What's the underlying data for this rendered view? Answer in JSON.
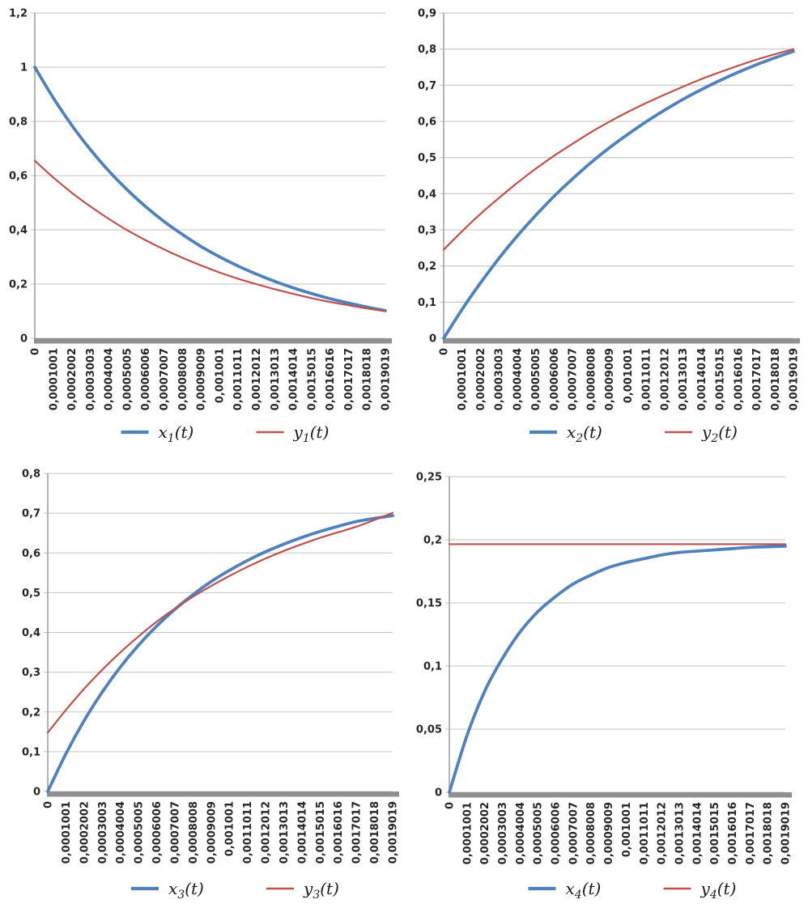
{
  "page": {
    "background": "#ffffff",
    "description": "Four line charts in a 2x2 grid showing numerical ODE solution curves x_i(t) and y_i(t) versus time t"
  },
  "colors": {
    "series_blue": "#4F81BD",
    "series_red": "#C0504D",
    "gridline": "#C3C3C3",
    "axis_line": "#8C8C8C",
    "baseline_bar": "#909090",
    "tick_text": "#262626",
    "legend_text": "#1a1a1a"
  },
  "chart_data": {
    "type": "line",
    "decimal_separator": ",",
    "grid": "horizontal",
    "legend_position": "bottom-center",
    "categories": [
      "0",
      "0,0001001",
      "0,0002002",
      "0,0003003",
      "0,0004004",
      "0,0005005",
      "0,0006006",
      "0,0007007",
      "0,0008008",
      "0,0009009",
      "0,001001",
      "0,0011011",
      "0,0012012",
      "0,0013013",
      "0,0014014",
      "0,0015015",
      "0,0016016",
      "0,0017017",
      "0,0018018",
      "0,0019019"
    ],
    "charts": [
      {
        "id": "chart-1",
        "position": "top-left",
        "ylim": [
          0,
          1.2
        ],
        "ytick_step": 0.2,
        "y_tick_labels": [
          "0",
          "0,2",
          "0,4",
          "0,6",
          "0,8",
          "1",
          "1,2"
        ],
        "series": [
          {
            "id": "x1",
            "name": "x₁(t)",
            "label_var": "x",
            "label_sub": "1",
            "label_arg": "(t)",
            "color": "#4F81BD",
            "width": "thick",
            "values": [
              1.0,
              0.887,
              0.786,
              0.697,
              0.618,
              0.548,
              0.486,
              0.431,
              0.383,
              0.339,
              0.301,
              0.267,
              0.237,
              0.21,
              0.186,
              0.165,
              0.146,
              0.13,
              0.115,
              0.102
            ]
          },
          {
            "id": "y1",
            "name": "y₁(t)",
            "label_var": "y",
            "label_sub": "1",
            "label_arg": "(t)",
            "color": "#C0504D",
            "width": "thin",
            "values": [
              0.655,
              0.593,
              0.537,
              0.487,
              0.441,
              0.399,
              0.362,
              0.328,
              0.297,
              0.269,
              0.243,
              0.22,
              0.2,
              0.181,
              0.164,
              0.148,
              0.134,
              0.122,
              0.11,
              0.1
            ]
          }
        ]
      },
      {
        "id": "chart-2",
        "position": "top-right",
        "ylim": [
          0,
          0.9
        ],
        "ytick_step": 0.1,
        "y_tick_labels": [
          "0",
          "0,1",
          "0,2",
          "0,3",
          "0,4",
          "0,5",
          "0,6",
          "0,7",
          "0,8",
          "0,9"
        ],
        "series": [
          {
            "id": "x2",
            "name": "x₂(t)",
            "label_var": "x",
            "label_sub": "2",
            "label_arg": "(t)",
            "color": "#4F81BD",
            "width": "thick",
            "values": [
              0.0,
              0.08,
              0.153,
              0.221,
              0.283,
              0.34,
              0.393,
              0.441,
              0.486,
              0.527,
              0.564,
              0.599,
              0.631,
              0.661,
              0.688,
              0.713,
              0.736,
              0.757,
              0.776,
              0.794
            ]
          },
          {
            "id": "y2",
            "name": "y₂(t)",
            "label_var": "y",
            "label_sub": "2",
            "label_arg": "(t)",
            "color": "#C0504D",
            "width": "thin",
            "values": [
              0.245,
              0.296,
              0.344,
              0.388,
              0.43,
              0.469,
              0.505,
              0.538,
              0.57,
              0.599,
              0.626,
              0.651,
              0.674,
              0.696,
              0.717,
              0.736,
              0.754,
              0.771,
              0.786,
              0.8
            ]
          }
        ]
      },
      {
        "id": "chart-3",
        "position": "bottom-left",
        "ylim": [
          0,
          0.8
        ],
        "ytick_step": 0.1,
        "y_tick_labels": [
          "0",
          "0,1",
          "0,2",
          "0,3",
          "0,4",
          "0,5",
          "0,6",
          "0,7",
          "0,8"
        ],
        "series": [
          {
            "id": "x3",
            "name": "x₃(t)",
            "label_var": "x",
            "label_sub": "3",
            "label_arg": "(t)",
            "color": "#4F81BD",
            "width": "thick",
            "values": [
              0.0,
              0.095,
              0.178,
              0.25,
              0.313,
              0.368,
              0.416,
              0.458,
              0.495,
              0.528,
              0.556,
              0.581,
              0.603,
              0.622,
              0.639,
              0.654,
              0.667,
              0.679,
              0.687,
              0.694
            ]
          },
          {
            "id": "y3",
            "name": "y₃(t)",
            "label_var": "y",
            "label_sub": "3",
            "label_arg": "(t)",
            "color": "#C0504D",
            "width": "thin",
            "values": [
              0.148,
              0.205,
              0.258,
              0.306,
              0.35,
              0.39,
              0.427,
              0.46,
              0.49,
              0.517,
              0.542,
              0.565,
              0.586,
              0.605,
              0.622,
              0.638,
              0.652,
              0.666,
              0.683,
              0.701
            ]
          }
        ]
      },
      {
        "id": "chart-4",
        "position": "bottom-right",
        "ylim": [
          0,
          0.25
        ],
        "ytick_step": 0.05,
        "y_tick_labels": [
          "0",
          "0,05",
          "0,1",
          "0,15",
          "0,2",
          "0,25"
        ],
        "series": [
          {
            "id": "x4",
            "name": "x₄(t)",
            "label_var": "x",
            "label_sub": "4",
            "label_arg": "(t)",
            "color": "#4F81BD",
            "width": "thick",
            "values": [
              0.0,
              0.045,
              0.08,
              0.106,
              0.127,
              0.143,
              0.155,
              0.165,
              0.172,
              0.178,
              0.182,
              0.185,
              0.188,
              0.19,
              0.191,
              0.192,
              0.193,
              0.194,
              0.1945,
              0.195
            ]
          },
          {
            "id": "y4",
            "name": "y₄(t)",
            "label_var": "y",
            "label_sub": "4",
            "label_arg": "(t)",
            "color": "#C0504D",
            "width": "thin",
            "values": [
              0.1965,
              0.1965,
              0.1965,
              0.1965,
              0.1965,
              0.1965,
              0.1965,
              0.1965,
              0.1965,
              0.1965,
              0.1965,
              0.1965,
              0.1965,
              0.1965,
              0.1965,
              0.1965,
              0.1965,
              0.1965,
              0.1965,
              0.1965
            ]
          }
        ]
      }
    ]
  }
}
